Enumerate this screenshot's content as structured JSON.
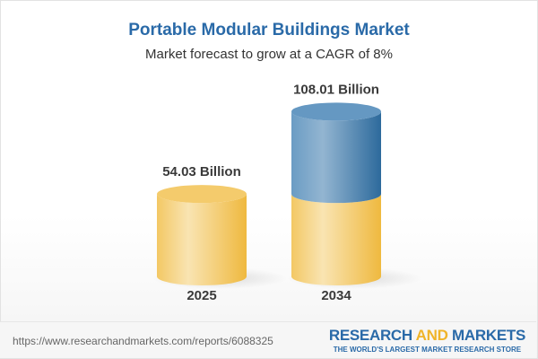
{
  "title": "Portable Modular Buildings Market",
  "subtitle": "Market forecast to grow at a CAGR of 8%",
  "chart_data": {
    "type": "bar",
    "style": "3d-cylinder",
    "categories": [
      "2025",
      "2034"
    ],
    "values": [
      54.03,
      108.01
    ],
    "data_labels": [
      "54.03 Billion",
      "108.01 Billion"
    ],
    "colors": {
      "base": "#f2c45e",
      "growth": "#3f7fb3"
    }
  },
  "footer": {
    "url": "https://www.researchandmarkets.com/reports/6088325",
    "logo_part1": "RESEARCH ",
    "logo_part2": "AND",
    "logo_part3": " MARKETS",
    "logo_tagline": "THE WORLD'S LARGEST MARKET RESEARCH STORE"
  }
}
